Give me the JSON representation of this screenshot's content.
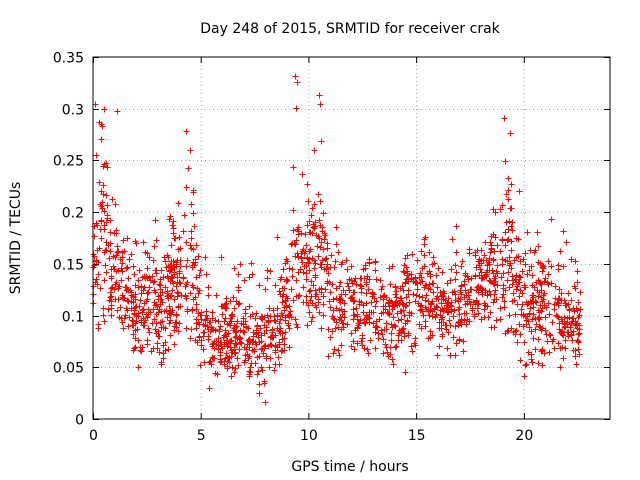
{
  "chart_data": {
    "type": "scatter",
    "title": "Day 248 of 2015, SRMTID for receiver crak",
    "xlabel": "GPS time / hours",
    "ylabel": "SRMTID / TECUs",
    "xlim": [
      0,
      24
    ],
    "ylim": [
      0,
      0.35
    ],
    "xticks": [
      0,
      5,
      10,
      15,
      20
    ],
    "xtick_labels": [
      "0",
      "5",
      "10",
      "15",
      "20"
    ],
    "yticks": [
      0,
      0.05,
      0.1,
      0.15,
      0.2,
      0.25,
      0.3,
      0.35
    ],
    "ytick_labels": [
      "0",
      "0.05",
      "0.1",
      "0.15",
      "0.2",
      "0.25",
      "0.3",
      "0.35"
    ],
    "grid": true,
    "marker": "+",
    "color": "#ff0000",
    "x_data_range": [
      0,
      22.6
    ],
    "envelope_hours": [
      0,
      0.3,
      1,
      2,
      3,
      4,
      4.5,
      5,
      6,
      7,
      8,
      9,
      9.5,
      10,
      10.5,
      11,
      12,
      13,
      14,
      15,
      16,
      17,
      18,
      19,
      19.5,
      20,
      21,
      22,
      22.6
    ],
    "envelope_min": [
      0.07,
      0.09,
      0.07,
      0.05,
      0.05,
      0.06,
      0.07,
      0.04,
      0.04,
      0.04,
      0.03,
      0.06,
      0.09,
      0.08,
      0.08,
      0.05,
      0.06,
      0.06,
      0.05,
      0.06,
      0.06,
      0.06,
      0.09,
      0.08,
      0.06,
      0.05,
      0.05,
      0.05,
      0.05
    ],
    "envelope_max": [
      0.24,
      0.3,
      0.22,
      0.17,
      0.2,
      0.23,
      0.27,
      0.16,
      0.16,
      0.16,
      0.14,
      0.21,
      0.33,
      0.24,
      0.31,
      0.2,
      0.17,
      0.16,
      0.15,
      0.18,
      0.18,
      0.19,
      0.17,
      0.25,
      0.29,
      0.18,
      0.2,
      0.18,
      0.14
    ],
    "envelope_median": [
      0.14,
      0.19,
      0.14,
      0.1,
      0.11,
      0.13,
      0.15,
      0.09,
      0.08,
      0.08,
      0.07,
      0.11,
      0.16,
      0.15,
      0.16,
      0.12,
      0.11,
      0.1,
      0.1,
      0.12,
      0.11,
      0.11,
      0.13,
      0.15,
      0.16,
      0.11,
      0.1,
      0.1,
      0.09
    ],
    "highlighted_points": [
      {
        "x": 0.1,
        "y": 0.305
      },
      {
        "x": 0.5,
        "y": 0.3
      },
      {
        "x": 1.1,
        "y": 0.298
      },
      {
        "x": 4.3,
        "y": 0.278
      },
      {
        "x": 8.0,
        "y": 0.016
      },
      {
        "x": 9.4,
        "y": 0.332
      },
      {
        "x": 9.45,
        "y": 0.326
      },
      {
        "x": 10.5,
        "y": 0.313
      },
      {
        "x": 10.55,
        "y": 0.305
      },
      {
        "x": 19.1,
        "y": 0.291
      },
      {
        "x": 5.4,
        "y": 0.03
      },
      {
        "x": 7.7,
        "y": 0.025
      },
      {
        "x": 14.5,
        "y": 0.045
      },
      {
        "x": 20.0,
        "y": 0.042
      }
    ],
    "series_count_estimate": 1900
  }
}
